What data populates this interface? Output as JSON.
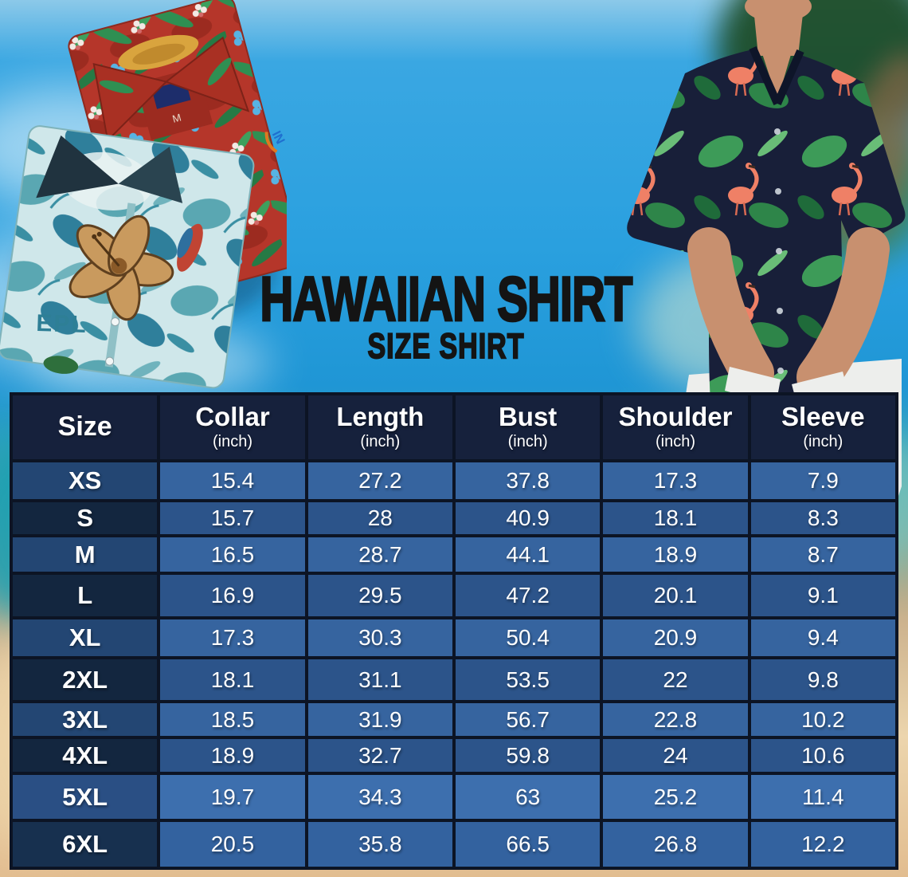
{
  "page": {
    "title_line1": "HAWAIIAN SHIRT",
    "title_line2": "SIZE SHIRT"
  },
  "table": {
    "columns": [
      {
        "label": "Size",
        "unit": ""
      },
      {
        "label": "Collar",
        "unit": "(inch)"
      },
      {
        "label": "Length",
        "unit": "(inch)"
      },
      {
        "label": "Bust",
        "unit": "(inch)"
      },
      {
        "label": "Shoulder",
        "unit": "(inch)"
      },
      {
        "label": "Sleeve",
        "unit": "(inch)"
      }
    ],
    "rows": [
      {
        "size": "XS",
        "values": [
          "15.4",
          "27.2",
          "37.8",
          "17.3",
          "7.9"
        ]
      },
      {
        "size": "S",
        "values": [
          "15.7",
          "28",
          "40.9",
          "18.1",
          "8.3"
        ]
      },
      {
        "size": "M",
        "values": [
          "16.5",
          "28.7",
          "44.1",
          "18.9",
          "8.7"
        ]
      },
      {
        "size": "L",
        "values": [
          "16.9",
          "29.5",
          "47.2",
          "20.1",
          "9.1"
        ]
      },
      {
        "size": "XL",
        "values": [
          "17.3",
          "30.3",
          "50.4",
          "20.9",
          "9.4"
        ]
      },
      {
        "size": "2XL",
        "values": [
          "18.1",
          "31.1",
          "53.5",
          "22",
          "9.8"
        ]
      },
      {
        "size": "3XL",
        "values": [
          "18.5",
          "31.9",
          "56.7",
          "22.8",
          "10.2"
        ]
      },
      {
        "size": "4XL",
        "values": [
          "18.9",
          "32.7",
          "59.8",
          "24",
          "10.6"
        ]
      },
      {
        "size": "5XL",
        "values": [
          "19.7",
          "34.3",
          "63",
          "25.2",
          "11.4"
        ]
      },
      {
        "size": "6XL",
        "values": [
          "20.5",
          "35.8",
          "66.5",
          "26.8",
          "12.2"
        ]
      }
    ]
  },
  "chart_data": {
    "type": "table",
    "title": "Hawaiian Shirt Size Shirt",
    "columns": [
      "Size",
      "Collar (inch)",
      "Length (inch)",
      "Bust (inch)",
      "Shoulder (inch)",
      "Sleeve (inch)"
    ],
    "rows": [
      [
        "XS",
        15.4,
        27.2,
        37.8,
        17.3,
        7.9
      ],
      [
        "S",
        15.7,
        28,
        40.9,
        18.1,
        8.3
      ],
      [
        "M",
        16.5,
        28.7,
        44.1,
        18.9,
        8.7
      ],
      [
        "L",
        16.9,
        29.5,
        47.2,
        20.1,
        9.1
      ],
      [
        "XL",
        17.3,
        30.3,
        50.4,
        20.9,
        9.4
      ],
      [
        "2XL",
        18.1,
        31.1,
        53.5,
        22,
        9.8
      ],
      [
        "3XL",
        18.5,
        31.9,
        56.7,
        22.8,
        10.2
      ],
      [
        "4XL",
        18.9,
        32.7,
        59.8,
        24,
        10.6
      ],
      [
        "5XL",
        19.7,
        34.3,
        63,
        25.2,
        11.4
      ],
      [
        "6XL",
        20.5,
        35.8,
        66.5,
        26.8,
        12.2
      ]
    ]
  },
  "decor": {
    "red_shirt_tag": "M",
    "teal_shirt_print": "EPL",
    "sleeve_logo": "IN"
  },
  "colors": {
    "sky_blue": "#2aa0df",
    "teal_shore": "#2d9fc0",
    "sand": "#ecd5ad",
    "title_black": "#141414",
    "table_border": "#0c1424",
    "header_bg": "#16213c",
    "row_odd_value": "#36649f",
    "row_even_value": "#2c548a",
    "row_odd_size": "#234673",
    "row_even_size": "#13263f",
    "cell_text": "#ffffff",
    "red_shirt": "#b5362a",
    "leaf_green": "#2f8f52",
    "teal_shirt": "#cfe7ea",
    "teal_leaf": "#2f7f9b",
    "hibiscus_tan": "#c99a5e",
    "navy_shirt": "#181f39",
    "flamingo_pink": "#ef8066",
    "skin": "#c8906f",
    "pants_white": "#edeeec"
  }
}
